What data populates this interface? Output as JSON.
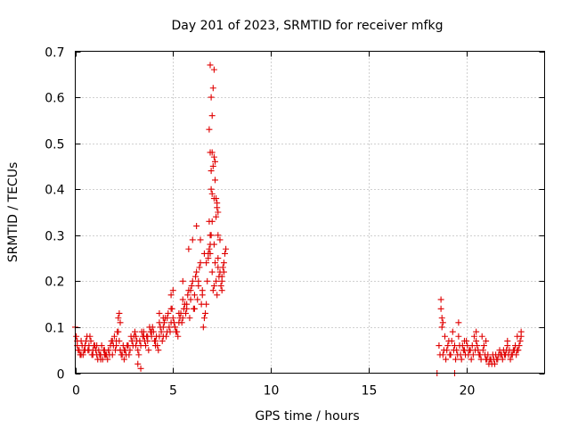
{
  "chart_data": {
    "type": "scatter",
    "title": "Day 201 of 2023, SRMTID for receiver mfkg",
    "xlabel": "GPS time / hours",
    "ylabel": "SRMTID / TECUs",
    "xlim": [
      0,
      24
    ],
    "ylim": [
      0,
      0.7
    ],
    "x_ticks": [
      "0",
      "5",
      "10",
      "15",
      "20"
    ],
    "x_tick_values": [
      0,
      5,
      10,
      15,
      20
    ],
    "y_ticks": [
      "0",
      "0.1",
      "0.2",
      "0.3",
      "0.4",
      "0.5",
      "0.6",
      "0.7"
    ],
    "y_tick_values": [
      0,
      0.1,
      0.2,
      0.3,
      0.4,
      0.5,
      0.6,
      0.7
    ],
    "grid": true,
    "marker": "plus",
    "color": "#e00000",
    "series": [
      {
        "name": "SRMTID",
        "x": [
          0.0,
          0.1,
          0.2,
          0.3,
          0.4,
          0.5,
          0.6,
          0.7,
          0.8,
          0.9,
          1.0,
          1.1,
          1.2,
          1.3,
          1.4,
          1.5,
          1.6,
          1.7,
          1.8,
          1.9,
          2.0,
          2.1,
          2.2,
          2.3,
          2.4,
          2.5,
          2.6,
          2.7,
          2.8,
          2.9,
          3.0,
          3.1,
          3.2,
          3.3,
          3.4,
          3.5,
          3.6,
          3.7,
          3.8,
          3.9,
          4.0,
          4.1,
          4.2,
          4.3,
          4.4,
          4.5,
          4.6,
          4.7,
          4.8,
          4.9,
          5.0,
          5.1,
          5.2,
          5.3,
          5.4,
          5.5,
          5.6,
          5.7,
          5.8,
          5.9,
          6.0,
          6.1,
          6.2,
          6.3,
          6.4,
          6.5,
          6.6,
          6.7,
          6.8,
          6.9,
          7.0,
          7.1,
          7.2,
          7.3,
          7.4,
          7.5,
          7.6,
          7.7,
          0.05,
          0.15,
          0.25,
          0.35,
          0.45,
          0.55,
          0.65,
          0.75,
          0.85,
          0.95,
          1.05,
          1.15,
          1.25,
          1.35,
          1.45,
          1.55,
          1.65,
          1.75,
          1.85,
          1.95,
          2.05,
          2.15,
          2.25,
          2.35,
          2.45,
          2.55,
          2.65,
          2.75,
          2.85,
          2.95,
          3.05,
          3.15,
          3.25,
          3.35,
          3.45,
          3.55,
          3.65,
          3.75,
          3.85,
          3.95,
          4.05,
          4.15,
          4.25,
          4.35,
          4.45,
          4.55,
          4.65,
          4.75,
          4.85,
          4.95,
          5.05,
          5.15,
          5.25,
          5.35,
          5.45,
          5.55,
          5.65,
          5.75,
          5.85,
          5.95,
          6.05,
          6.15,
          6.25,
          6.35,
          6.45,
          6.55,
          6.65,
          6.75,
          6.85,
          6.95,
          7.05,
          7.15,
          7.25,
          7.35,
          7.45,
          7.55,
          7.65,
          0.1,
          0.3,
          0.5,
          0.7,
          0.9,
          1.1,
          1.3,
          1.5,
          1.7,
          1.9,
          2.1,
          2.3,
          2.5,
          2.7,
          2.9,
          3.1,
          3.3,
          3.5,
          3.7,
          3.9,
          4.1,
          4.3,
          4.5,
          4.7,
          4.9,
          5.1,
          5.3,
          5.5,
          5.7,
          5.9,
          6.1,
          6.3,
          6.5,
          6.7,
          6.9,
          7.1,
          7.3,
          7.5,
          2.2,
          2.25,
          2.3,
          3.2,
          3.35,
          4.3,
          4.5,
          4.9,
          5.0,
          5.5,
          5.8,
          6.0,
          6.2,
          6.4,
          6.6,
          6.8,
          6.85,
          6.9,
          6.95,
          7.0,
          7.05,
          7.1,
          7.15,
          7.2,
          7.25,
          7.3,
          7.4,
          7.5,
          7.6,
          6.9,
          6.95,
          6.85,
          7.0,
          6.9,
          7.05,
          7.1,
          6.95,
          7.0,
          7.15,
          7.2,
          7.25,
          7.3,
          7.0,
          7.1,
          18.5,
          19.4,
          18.6,
          18.7,
          18.8,
          18.9,
          19.0,
          19.1,
          19.2,
          19.3,
          19.4,
          19.5,
          19.6,
          19.7,
          19.8,
          19.9,
          20.0,
          20.1,
          20.2,
          20.3,
          20.4,
          20.5,
          20.6,
          20.7,
          20.8,
          20.9,
          21.0,
          21.1,
          21.2,
          21.3,
          21.4,
          21.5,
          21.6,
          21.7,
          21.8,
          21.9,
          22.0,
          22.1,
          22.2,
          22.3,
          22.4,
          22.5,
          22.6,
          22.7,
          22.8,
          18.65,
          18.75,
          18.85,
          18.95,
          19.05,
          19.15,
          19.25,
          19.35,
          19.45,
          19.55,
          19.65,
          19.75,
          19.85,
          19.95,
          20.05,
          20.15,
          20.25,
          20.35,
          20.45,
          20.55,
          20.65,
          20.75,
          20.85,
          20.95,
          21.05,
          21.15,
          21.25,
          21.35,
          21.45,
          21.55,
          21.65,
          21.75,
          21.85,
          21.95,
          22.05,
          22.15,
          22.25,
          22.35,
          22.45,
          22.55,
          22.65,
          22.75,
          18.7,
          18.75,
          18.8,
          19.6,
          19.9,
          20.5,
          21.0,
          22.1,
          22.6,
          22.8
        ],
        "y": [
          0.1,
          0.06,
          0.05,
          0.07,
          0.04,
          0.05,
          0.08,
          0.06,
          0.07,
          0.05,
          0.06,
          0.04,
          0.05,
          0.04,
          0.03,
          0.05,
          0.04,
          0.05,
          0.06,
          0.07,
          0.08,
          0.06,
          0.09,
          0.05,
          0.04,
          0.03,
          0.04,
          0.06,
          0.05,
          0.07,
          0.08,
          0.06,
          0.05,
          0.07,
          0.09,
          0.08,
          0.06,
          0.07,
          0.1,
          0.08,
          0.09,
          0.07,
          0.06,
          0.08,
          0.09,
          0.1,
          0.12,
          0.09,
          0.1,
          0.11,
          0.12,
          0.1,
          0.09,
          0.11,
          0.13,
          0.12,
          0.15,
          0.14,
          0.18,
          0.16,
          0.2,
          0.17,
          0.22,
          0.19,
          0.24,
          0.18,
          0.12,
          0.15,
          0.25,
          0.3,
          0.22,
          0.28,
          0.2,
          0.25,
          0.22,
          0.21,
          0.24,
          0.27,
          0.08,
          0.05,
          0.04,
          0.06,
          0.05,
          0.07,
          0.05,
          0.08,
          0.04,
          0.06,
          0.05,
          0.03,
          0.04,
          0.06,
          0.05,
          0.04,
          0.03,
          0.04,
          0.07,
          0.06,
          0.05,
          0.09,
          0.07,
          0.04,
          0.06,
          0.05,
          0.06,
          0.04,
          0.08,
          0.06,
          0.09,
          0.07,
          0.04,
          0.06,
          0.08,
          0.07,
          0.08,
          0.05,
          0.09,
          0.1,
          0.07,
          0.08,
          0.05,
          0.1,
          0.07,
          0.11,
          0.08,
          0.13,
          0.09,
          0.14,
          0.11,
          0.09,
          0.08,
          0.12,
          0.11,
          0.14,
          0.13,
          0.17,
          0.12,
          0.19,
          0.14,
          0.21,
          0.16,
          0.23,
          0.15,
          0.1,
          0.13,
          0.2,
          0.27,
          0.3,
          0.18,
          0.24,
          0.17,
          0.21,
          0.19,
          0.23,
          0.26,
          0.07,
          0.04,
          0.06,
          0.05,
          0.04,
          0.06,
          0.03,
          0.04,
          0.05,
          0.04,
          0.07,
          0.05,
          0.05,
          0.06,
          0.07,
          0.08,
          0.07,
          0.09,
          0.08,
          0.09,
          0.06,
          0.11,
          0.08,
          0.12,
          0.14,
          0.1,
          0.13,
          0.16,
          0.15,
          0.18,
          0.14,
          0.2,
          0.17,
          0.24,
          0.26,
          0.19,
          0.23,
          0.18,
          0.12,
          0.13,
          0.11,
          0.02,
          0.01,
          0.13,
          0.12,
          0.17,
          0.18,
          0.2,
          0.27,
          0.29,
          0.32,
          0.29,
          0.26,
          0.26,
          0.33,
          0.28,
          0.4,
          0.33,
          0.45,
          0.38,
          0.42,
          0.34,
          0.37,
          0.3,
          0.29,
          0.2,
          0.22,
          0.48,
          0.6,
          0.53,
          0.56,
          0.67,
          0.62,
          0.66,
          0.44,
          0.48,
          0.46,
          0.38,
          0.36,
          0.35,
          0.39,
          0.47,
          0.0,
          0.0,
          0.06,
          0.14,
          0.04,
          0.08,
          0.05,
          0.07,
          0.04,
          0.09,
          0.06,
          0.05,
          0.08,
          0.04,
          0.06,
          0.05,
          0.07,
          0.04,
          0.05,
          0.06,
          0.08,
          0.07,
          0.05,
          0.04,
          0.08,
          0.06,
          0.03,
          0.04,
          0.03,
          0.02,
          0.03,
          0.04,
          0.03,
          0.05,
          0.04,
          0.05,
          0.04,
          0.06,
          0.05,
          0.04,
          0.05,
          0.06,
          0.05,
          0.06,
          0.08,
          0.04,
          0.1,
          0.05,
          0.03,
          0.06,
          0.04,
          0.07,
          0.05,
          0.03,
          0.04,
          0.06,
          0.03,
          0.05,
          0.04,
          0.06,
          0.05,
          0.03,
          0.04,
          0.05,
          0.06,
          0.04,
          0.03,
          0.05,
          0.04,
          0.03,
          0.02,
          0.03,
          0.04,
          0.02,
          0.03,
          0.04,
          0.04,
          0.03,
          0.04,
          0.05,
          0.04,
          0.03,
          0.04,
          0.05,
          0.04,
          0.05,
          0.07,
          0.16,
          0.12,
          0.11,
          0.11,
          0.07,
          0.09,
          0.07,
          0.07,
          0.08,
          0.09
        ]
      }
    ]
  }
}
